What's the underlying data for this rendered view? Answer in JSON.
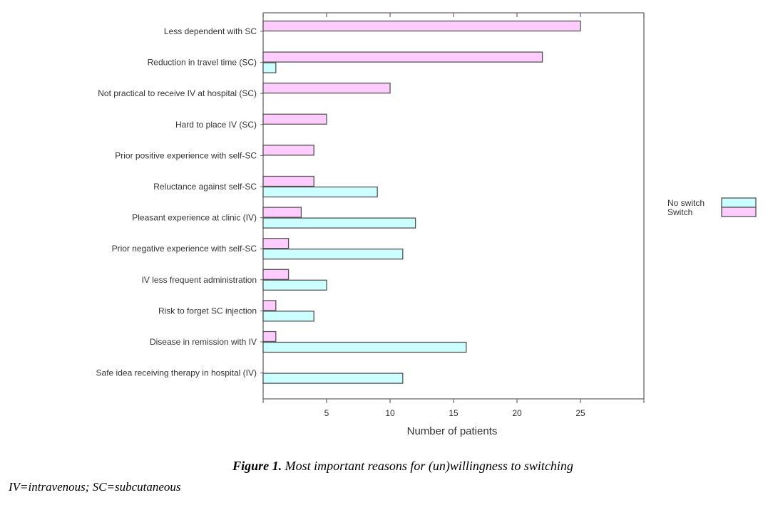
{
  "chart_data": {
    "type": "bar",
    "orientation": "horizontal",
    "categories": [
      "Less dependent with SC",
      "Reduction in travel time (SC)",
      "Not practical to receive IV at hospital (SC)",
      "Hard to place IV (SC)",
      "Prior positive experience with self-SC",
      "Reluctance against self-SC",
      "Pleasant experience at clinic (IV)",
      "Prior negative experience with self-SC",
      "IV less frequent administration",
      "Risk to forget SC injection",
      "Disease in remission with IV",
      "Safe idea receiving therapy in hospital (IV)"
    ],
    "series": [
      {
        "name": "Switch",
        "color": "#ffccff",
        "values": [
          25,
          22,
          10,
          5,
          4,
          4,
          3,
          2,
          2,
          1,
          1,
          0
        ]
      },
      {
        "name": "No switch",
        "color": "#ccffff",
        "values": [
          0,
          1,
          0,
          0,
          0,
          9,
          12,
          11,
          5,
          4,
          16,
          11
        ]
      }
    ],
    "title": "",
    "xlabel": "Number of patients",
    "ylabel": "",
    "xlim": [
      0,
      30
    ],
    "xticks": [
      5,
      10,
      15,
      20,
      25
    ],
    "legend": {
      "position": "right",
      "entries": [
        "No switch",
        "Switch"
      ]
    },
    "grid": false
  },
  "caption": {
    "label": "Figure 1.",
    "text": " Most important reasons for (un)willingness to switching"
  },
  "footnote": "IV=intravenous; SC=subcutaneous"
}
